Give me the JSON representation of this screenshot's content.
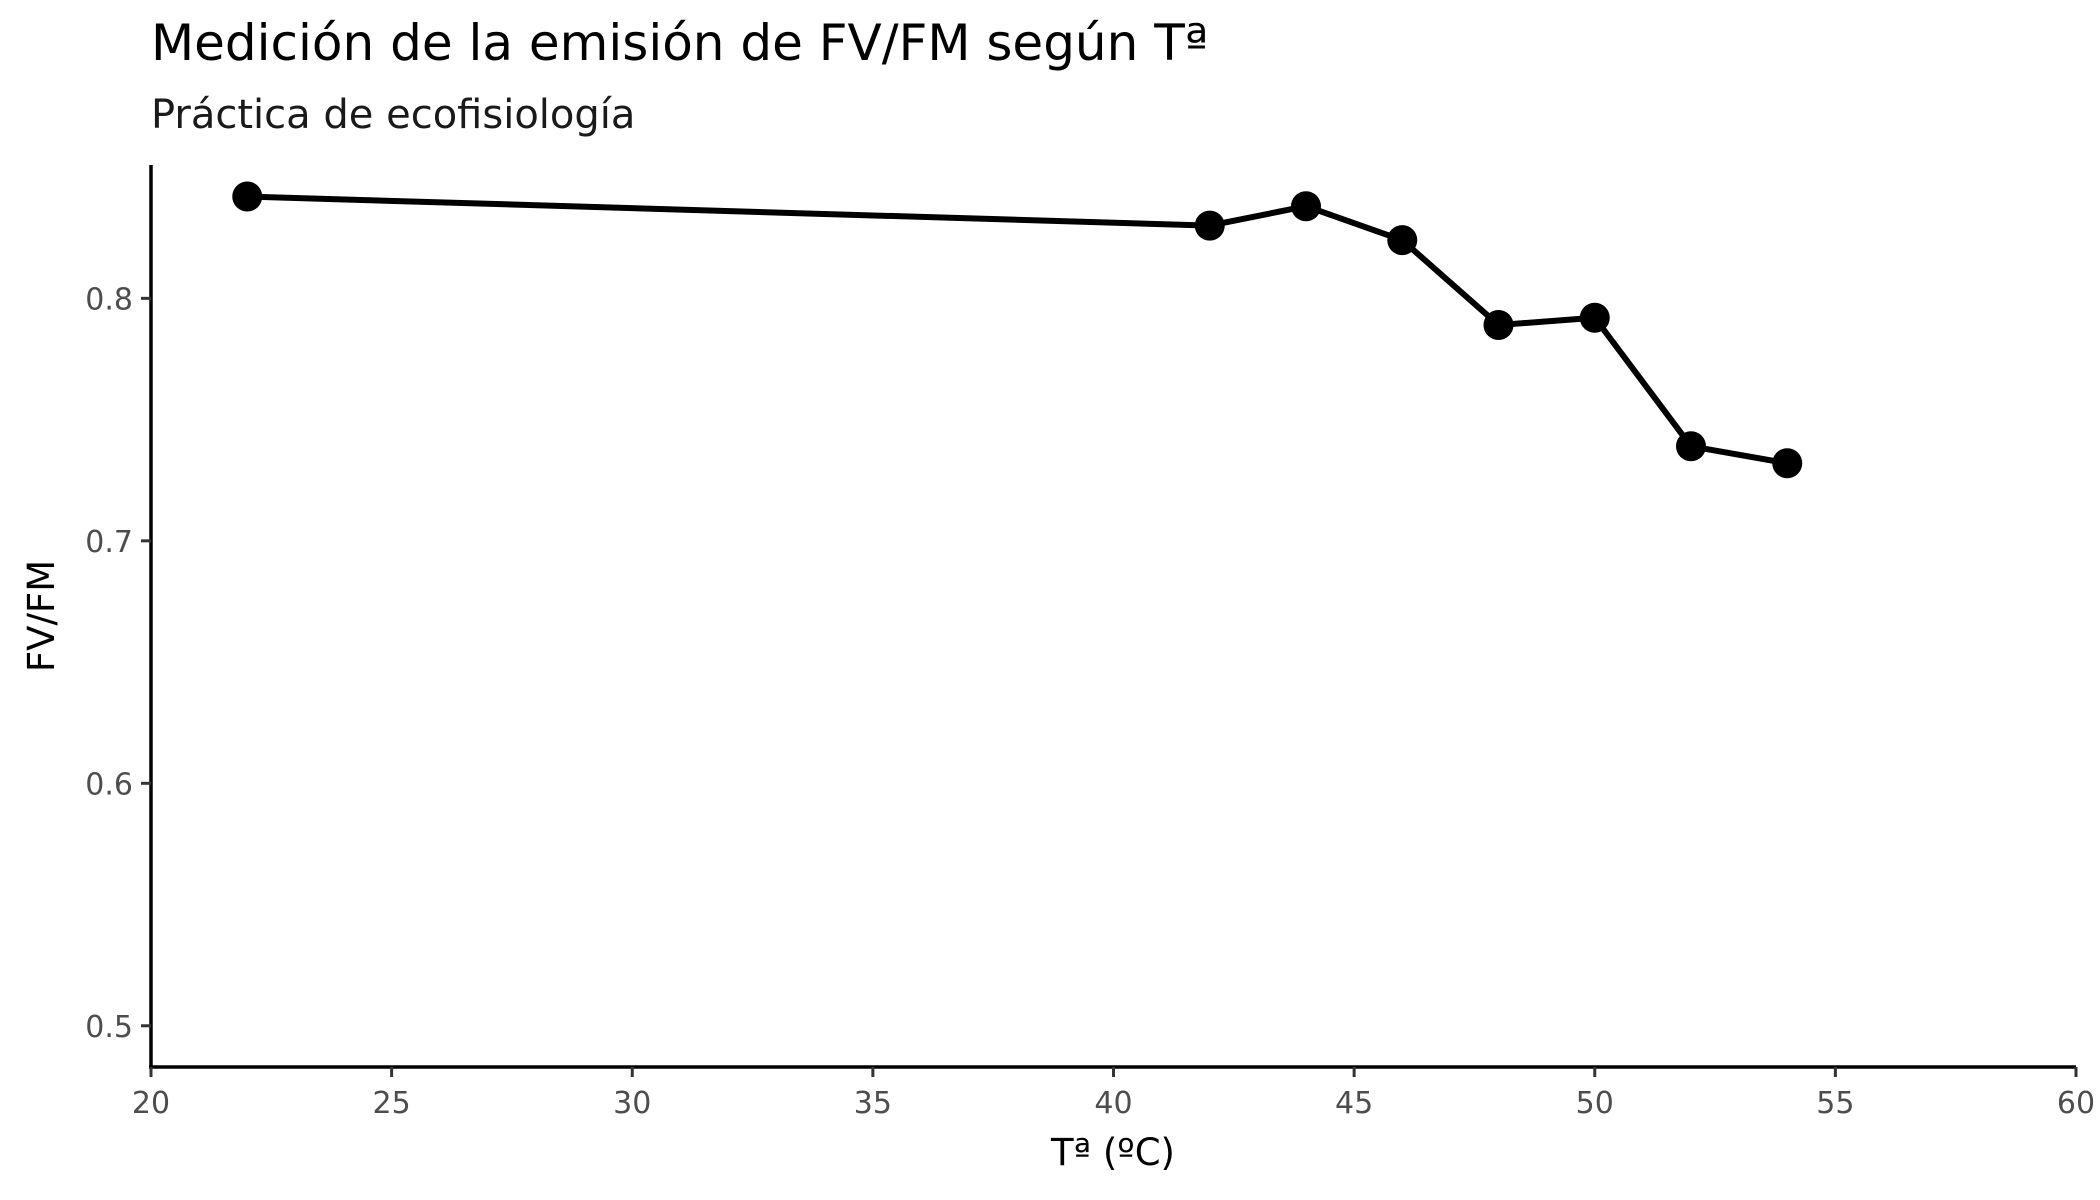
{
  "chart_data": {
    "type": "line",
    "title": "Medición de la emisión de FV/FM según Tª",
    "subtitle": "Práctica de ecofisiología",
    "xlabel": "Tª (ºC)",
    "ylabel": "FV/FM",
    "xlim": [
      20,
      60
    ],
    "ylim": [
      0.483,
      0.855
    ],
    "x_ticks": [
      20,
      25,
      30,
      35,
      40,
      45,
      50,
      55,
      60
    ],
    "y_ticks": [
      0.5,
      0.6,
      0.7,
      0.8
    ],
    "x_tick_labels": [
      "20",
      "25",
      "30",
      "35",
      "40",
      "45",
      "50",
      "55",
      "60"
    ],
    "y_tick_labels": [
      "0.5",
      "0.6",
      "0.7",
      "0.8"
    ],
    "grid": false,
    "legend": "none",
    "series": [
      {
        "color": "#000000",
        "points": [
          {
            "x": 22,
            "y": 0.842
          },
          {
            "x": 42,
            "y": 0.83
          },
          {
            "x": 44,
            "y": 0.838
          },
          {
            "x": 46,
            "y": 0.824
          },
          {
            "x": 48,
            "y": 0.789
          },
          {
            "x": 50,
            "y": 0.792
          },
          {
            "x": 52,
            "y": 0.739
          },
          {
            "x": 54,
            "y": 0.732
          }
        ]
      }
    ]
  }
}
